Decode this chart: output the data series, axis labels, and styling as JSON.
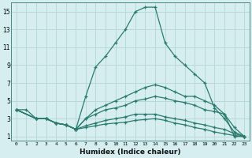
{
  "xlabel": "Humidex (Indice chaleur)",
  "ylabel": "",
  "background_color": "#d6eef0",
  "grid_color": "#b8d8dc",
  "line_color": "#2a7a6e",
  "xlim": [
    -0.5,
    23.5
  ],
  "ylim": [
    0.5,
    16
  ],
  "xticks": [
    0,
    1,
    2,
    3,
    4,
    5,
    6,
    7,
    8,
    9,
    10,
    11,
    12,
    13,
    14,
    15,
    16,
    17,
    18,
    19,
    20,
    21,
    22,
    23
  ],
  "yticks": [
    1,
    3,
    5,
    7,
    9,
    11,
    13,
    15
  ],
  "lines": [
    {
      "x": [
        0,
        1,
        2,
        3,
        4,
        5,
        6,
        7,
        8,
        9,
        10,
        11,
        12,
        13,
        14,
        15,
        16,
        17,
        18,
        19,
        20,
        21,
        22,
        23
      ],
      "y": [
        4,
        4,
        3,
        3,
        2.5,
        2.3,
        1.8,
        5.5,
        8.8,
        10,
        11.5,
        13,
        15,
        15.5,
        15.5,
        11.5,
        10,
        9,
        8,
        7,
        4.2,
        3,
        1.5,
        1
      ]
    },
    {
      "x": [
        0,
        2,
        3,
        4,
        5,
        6,
        7,
        8,
        9,
        10,
        11,
        12,
        13,
        14,
        15,
        16,
        17,
        18,
        19,
        20,
        21,
        22,
        23
      ],
      "y": [
        4,
        3,
        3,
        2.5,
        2.3,
        1.8,
        3,
        4,
        4.5,
        5,
        5.5,
        6,
        6.5,
        6.8,
        6.5,
        6,
        5.5,
        5.5,
        5,
        4.5,
        3.5,
        1,
        1
      ]
    },
    {
      "x": [
        0,
        2,
        3,
        4,
        5,
        6,
        7,
        8,
        9,
        10,
        11,
        12,
        13,
        14,
        15,
        16,
        17,
        18,
        19,
        20,
        21,
        22,
        23
      ],
      "y": [
        4,
        3,
        3,
        2.5,
        2.3,
        1.8,
        3,
        3.5,
        4,
        4.2,
        4.5,
        5,
        5.2,
        5.5,
        5.3,
        5,
        4.8,
        4.5,
        4,
        3.8,
        3.5,
        2,
        1
      ]
    },
    {
      "x": [
        0,
        2,
        3,
        4,
        5,
        6,
        7,
        8,
        9,
        10,
        11,
        12,
        13,
        14,
        15,
        16,
        17,
        18,
        19,
        20,
        21,
        22,
        23
      ],
      "y": [
        4,
        3,
        3,
        2.5,
        2.3,
        1.8,
        2.2,
        2.5,
        2.8,
        3,
        3.2,
        3.5,
        3.5,
        3.5,
        3.2,
        3,
        2.8,
        2.5,
        2.3,
        2,
        1.8,
        1.3,
        1
      ]
    },
    {
      "x": [
        0,
        2,
        3,
        4,
        5,
        6,
        7,
        8,
        9,
        10,
        11,
        12,
        13,
        14,
        15,
        16,
        17,
        18,
        19,
        20,
        21,
        22,
        23
      ],
      "y": [
        4,
        3,
        3,
        2.5,
        2.3,
        1.8,
        2,
        2.2,
        2.4,
        2.5,
        2.6,
        2.8,
        2.9,
        3,
        2.8,
        2.5,
        2.3,
        2,
        1.8,
        1.5,
        1.3,
        1.1,
        1
      ]
    }
  ],
  "tick_fontsize_x": 4.5,
  "tick_fontsize_y": 5.5,
  "xlabel_fontsize": 6.5,
  "xlabel_fontweight": "bold"
}
